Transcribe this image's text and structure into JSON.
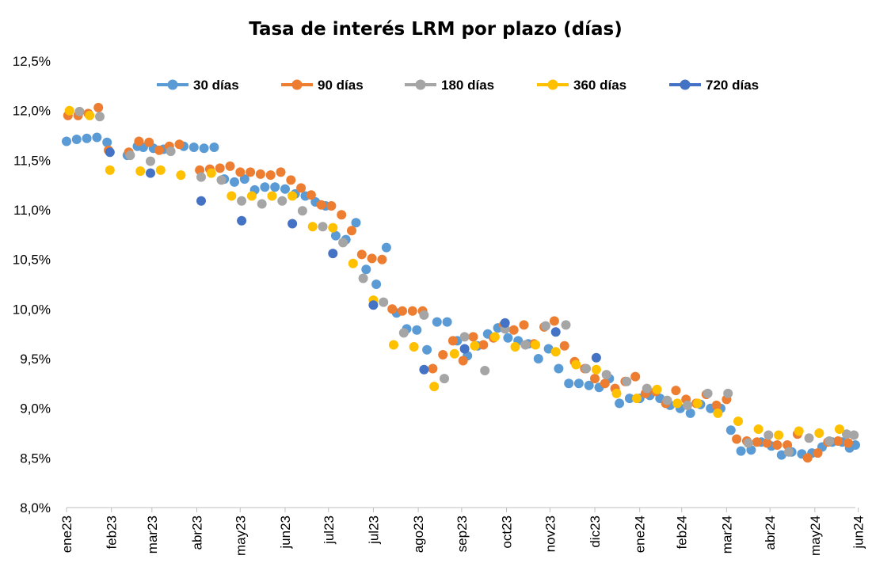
{
  "chart_data": {
    "type": "scatter",
    "title": "Tasa de interés LRM por plazo (días)",
    "xlabel": "",
    "ylabel": "",
    "ylim": [
      8.0,
      12.5
    ],
    "yticks": [
      "8,0%",
      "8,5%",
      "9,0%",
      "9,5%",
      "10,0%",
      "10,5%",
      "11,0%",
      "11,5%",
      "12,0%",
      "12,5%"
    ],
    "ytick_values": [
      8.0,
      8.5,
      9.0,
      9.5,
      10.0,
      10.5,
      11.0,
      11.5,
      12.0,
      12.5
    ],
    "x_start": "2023-01-02",
    "x_end": "2024-06-30",
    "xticks": [
      {
        "label": "ene23",
        "date": "2023-01-02"
      },
      {
        "label": "feb23",
        "date": "2023-02-02"
      },
      {
        "label": "mar23",
        "date": "2023-03-02"
      },
      {
        "label": "abr23",
        "date": "2023-04-02"
      },
      {
        "label": "may23",
        "date": "2023-05-02"
      },
      {
        "label": "jun23",
        "date": "2023-06-02"
      },
      {
        "label": "jul23",
        "date": "2023-07-02"
      },
      {
        "label": "jul23",
        "date": "2023-08-02"
      },
      {
        "label": "ago23",
        "date": "2023-09-02"
      },
      {
        "label": "sep23",
        "date": "2023-10-02"
      },
      {
        "label": "oct23",
        "date": "2023-11-02"
      },
      {
        "label": "nov23",
        "date": "2023-12-02"
      },
      {
        "label": "dic23",
        "date": "2024-01-02"
      },
      {
        "label": "ene24",
        "date": "2024-02-02"
      },
      {
        "label": "feb24",
        "date": "2024-03-02"
      },
      {
        "label": "mar24",
        "date": "2024-04-02"
      },
      {
        "label": "abr24",
        "date": "2024-05-02"
      },
      {
        "label": "may24",
        "date": "2024-06-02"
      },
      {
        "label": "jun24",
        "date": "2024-07-02"
      }
    ],
    "legend_position": "top",
    "grid": false,
    "series": [
      {
        "name": "30 días",
        "color": "#5b9bd5",
        "points": [
          [
            "2023-01-02",
            11.69
          ],
          [
            "2023-01-09",
            11.71
          ],
          [
            "2023-01-16",
            11.72
          ],
          [
            "2023-01-23",
            11.73
          ],
          [
            "2023-01-30",
            11.68
          ],
          [
            "2023-02-13",
            11.55
          ],
          [
            "2023-02-20",
            11.64
          ],
          [
            "2023-02-24",
            11.63
          ],
          [
            "2023-03-03",
            11.62
          ],
          [
            "2023-03-10",
            11.61
          ],
          [
            "2023-03-24",
            11.64
          ],
          [
            "2023-03-31",
            11.63
          ],
          [
            "2023-04-07",
            11.62
          ],
          [
            "2023-04-14",
            11.63
          ],
          [
            "2023-04-21",
            11.31
          ],
          [
            "2023-04-28",
            11.28
          ],
          [
            "2023-05-05",
            11.31
          ],
          [
            "2023-05-12",
            11.2
          ],
          [
            "2023-05-19",
            11.23
          ],
          [
            "2023-05-26",
            11.23
          ],
          [
            "2023-06-02",
            11.21
          ],
          [
            "2023-06-09",
            11.16
          ],
          [
            "2023-06-16",
            11.14
          ],
          [
            "2023-06-23",
            11.08
          ],
          [
            "2023-06-30",
            11.04
          ],
          [
            "2023-07-07",
            10.74
          ],
          [
            "2023-07-14",
            10.7
          ],
          [
            "2023-07-21",
            10.87
          ],
          [
            "2023-07-28",
            10.4
          ],
          [
            "2023-08-04",
            10.25
          ],
          [
            "2023-08-11",
            10.62
          ],
          [
            "2023-08-18",
            9.96
          ],
          [
            "2023-08-25",
            9.8
          ],
          [
            "2023-09-01",
            9.79
          ],
          [
            "2023-09-08",
            9.59
          ],
          [
            "2023-09-15",
            9.87
          ],
          [
            "2023-09-22",
            9.87
          ],
          [
            "2023-09-29",
            9.68
          ],
          [
            "2023-10-06",
            9.53
          ],
          [
            "2023-10-13",
            9.63
          ],
          [
            "2023-10-20",
            9.75
          ],
          [
            "2023-10-27",
            9.81
          ],
          [
            "2023-11-03",
            9.71
          ],
          [
            "2023-11-10",
            9.68
          ],
          [
            "2023-11-17",
            9.65
          ],
          [
            "2023-11-24",
            9.5
          ],
          [
            "2023-12-01",
            9.6
          ],
          [
            "2023-12-08",
            9.4
          ],
          [
            "2023-12-15",
            9.25
          ],
          [
            "2023-12-22",
            9.25
          ],
          [
            "2023-12-29",
            9.23
          ],
          [
            "2024-01-05",
            9.21
          ],
          [
            "2024-01-12",
            9.3
          ],
          [
            "2024-01-19",
            9.05
          ],
          [
            "2024-01-26",
            9.1
          ],
          [
            "2024-02-02",
            9.1
          ],
          [
            "2024-02-09",
            9.13
          ],
          [
            "2024-02-16",
            9.1
          ],
          [
            "2024-02-23",
            9.03
          ],
          [
            "2024-03-01",
            9.0
          ],
          [
            "2024-03-08",
            8.95
          ],
          [
            "2024-03-15",
            9.04
          ],
          [
            "2024-03-22",
            9.0
          ],
          [
            "2024-03-29",
            9.0
          ],
          [
            "2024-04-05",
            8.78
          ],
          [
            "2024-04-12",
            8.57
          ],
          [
            "2024-04-19",
            8.58
          ],
          [
            "2024-04-26",
            8.66
          ],
          [
            "2024-05-03",
            8.62
          ],
          [
            "2024-05-10",
            8.53
          ],
          [
            "2024-05-17",
            8.56
          ],
          [
            "2024-05-24",
            8.54
          ],
          [
            "2024-05-31",
            8.55
          ],
          [
            "2024-06-07",
            8.61
          ],
          [
            "2024-06-14",
            8.66
          ],
          [
            "2024-06-21",
            8.66
          ],
          [
            "2024-06-26",
            8.6
          ],
          [
            "2024-06-30",
            8.63
          ]
        ]
      },
      {
        "name": "90 días",
        "color": "#ed7d31",
        "points": [
          [
            "2023-01-03",
            11.95
          ],
          [
            "2023-01-10",
            11.95
          ],
          [
            "2023-01-17",
            11.97
          ],
          [
            "2023-01-24",
            12.03
          ],
          [
            "2023-01-31",
            11.6
          ],
          [
            "2023-02-14",
            11.58
          ],
          [
            "2023-02-21",
            11.69
          ],
          [
            "2023-02-28",
            11.68
          ],
          [
            "2023-03-07",
            11.6
          ],
          [
            "2023-03-14",
            11.64
          ],
          [
            "2023-03-21",
            11.66
          ],
          [
            "2023-04-04",
            11.4
          ],
          [
            "2023-04-11",
            11.41
          ],
          [
            "2023-04-18",
            11.42
          ],
          [
            "2023-04-25",
            11.44
          ],
          [
            "2023-05-02",
            11.38
          ],
          [
            "2023-05-09",
            11.38
          ],
          [
            "2023-05-16",
            11.36
          ],
          [
            "2023-05-23",
            11.35
          ],
          [
            "2023-05-30",
            11.38
          ],
          [
            "2023-06-06",
            11.3
          ],
          [
            "2023-06-13",
            11.22
          ],
          [
            "2023-06-20",
            11.15
          ],
          [
            "2023-06-27",
            11.05
          ],
          [
            "2023-07-04",
            11.04
          ],
          [
            "2023-07-11",
            10.95
          ],
          [
            "2023-07-18",
            10.79
          ],
          [
            "2023-07-25",
            10.55
          ],
          [
            "2023-08-01",
            10.51
          ],
          [
            "2023-08-08",
            10.5
          ],
          [
            "2023-08-15",
            10.0
          ],
          [
            "2023-08-22",
            9.98
          ],
          [
            "2023-08-29",
            9.98
          ],
          [
            "2023-09-05",
            9.98
          ],
          [
            "2023-09-12",
            9.4
          ],
          [
            "2023-09-19",
            9.54
          ],
          [
            "2023-09-26",
            9.68
          ],
          [
            "2023-10-03",
            9.48
          ],
          [
            "2023-10-10",
            9.72
          ],
          [
            "2023-10-17",
            9.64
          ],
          [
            "2023-10-24",
            9.71
          ],
          [
            "2023-10-31",
            9.84
          ],
          [
            "2023-11-07",
            9.79
          ],
          [
            "2023-11-14",
            9.84
          ],
          [
            "2023-11-21",
            9.65
          ],
          [
            "2023-11-28",
            9.82
          ],
          [
            "2023-12-05",
            9.88
          ],
          [
            "2023-12-12",
            9.63
          ],
          [
            "2023-12-19",
            9.47
          ],
          [
            "2023-12-26",
            9.4
          ],
          [
            "2024-01-02",
            9.3
          ],
          [
            "2024-01-09",
            9.25
          ],
          [
            "2024-01-16",
            9.2
          ],
          [
            "2024-01-23",
            9.27
          ],
          [
            "2024-01-30",
            9.32
          ],
          [
            "2024-02-06",
            9.15
          ],
          [
            "2024-02-13",
            9.17
          ],
          [
            "2024-02-20",
            9.05
          ],
          [
            "2024-02-27",
            9.18
          ],
          [
            "2024-03-05",
            9.09
          ],
          [
            "2024-03-12",
            9.05
          ],
          [
            "2024-03-19",
            9.14
          ],
          [
            "2024-03-26",
            9.03
          ],
          [
            "2024-04-02",
            9.09
          ],
          [
            "2024-04-09",
            8.69
          ],
          [
            "2024-04-16",
            8.67
          ],
          [
            "2024-04-23",
            8.66
          ],
          [
            "2024-04-30",
            8.65
          ],
          [
            "2024-05-07",
            8.63
          ],
          [
            "2024-05-14",
            8.63
          ],
          [
            "2024-05-21",
            8.74
          ],
          [
            "2024-05-28",
            8.5
          ],
          [
            "2024-06-04",
            8.55
          ],
          [
            "2024-06-11",
            8.66
          ],
          [
            "2024-06-18",
            8.67
          ],
          [
            "2024-06-25",
            8.65
          ]
        ]
      },
      {
        "name": "180 días",
        "color": "#a5a5a5",
        "points": [
          [
            "2023-01-11",
            11.99
          ],
          [
            "2023-01-25",
            11.94
          ],
          [
            "2023-02-15",
            11.55
          ],
          [
            "2023-03-01",
            11.49
          ],
          [
            "2023-03-15",
            11.59
          ],
          [
            "2023-04-05",
            11.33
          ],
          [
            "2023-04-19",
            11.3
          ],
          [
            "2023-05-03",
            11.09
          ],
          [
            "2023-05-17",
            11.06
          ],
          [
            "2023-05-31",
            11.09
          ],
          [
            "2023-06-14",
            10.99
          ],
          [
            "2023-06-28",
            10.83
          ],
          [
            "2023-07-12",
            10.67
          ],
          [
            "2023-07-26",
            10.31
          ],
          [
            "2023-08-09",
            10.07
          ],
          [
            "2023-08-23",
            9.76
          ],
          [
            "2023-09-06",
            9.94
          ],
          [
            "2023-09-20",
            9.3
          ],
          [
            "2023-10-04",
            9.72
          ],
          [
            "2023-10-18",
            9.38
          ],
          [
            "2023-11-01",
            9.8
          ],
          [
            "2023-11-15",
            9.64
          ],
          [
            "2023-11-29",
            9.83
          ],
          [
            "2023-12-13",
            9.84
          ],
          [
            "2023-12-27",
            9.4
          ],
          [
            "2024-01-10",
            9.34
          ],
          [
            "2024-01-24",
            9.27
          ],
          [
            "2024-02-07",
            9.2
          ],
          [
            "2024-02-21",
            9.08
          ],
          [
            "2024-03-06",
            9.03
          ],
          [
            "2024-03-20",
            9.15
          ],
          [
            "2024-04-03",
            9.15
          ],
          [
            "2024-04-17",
            8.65
          ],
          [
            "2024-05-01",
            8.73
          ],
          [
            "2024-05-15",
            8.56
          ],
          [
            "2024-05-29",
            8.7
          ],
          [
            "2024-06-12",
            8.67
          ],
          [
            "2024-06-24",
            8.74
          ],
          [
            "2024-06-29",
            8.73
          ]
        ]
      },
      {
        "name": "360 días",
        "color": "#ffc000",
        "points": [
          [
            "2023-01-04",
            12.0
          ],
          [
            "2023-01-18",
            11.95
          ],
          [
            "2023-02-01",
            11.4
          ],
          [
            "2023-02-22",
            11.39
          ],
          [
            "2023-03-08",
            11.4
          ],
          [
            "2023-03-22",
            11.35
          ],
          [
            "2023-04-12",
            11.37
          ],
          [
            "2023-04-26",
            11.14
          ],
          [
            "2023-05-10",
            11.14
          ],
          [
            "2023-05-24",
            11.14
          ],
          [
            "2023-06-07",
            11.14
          ],
          [
            "2023-06-21",
            10.83
          ],
          [
            "2023-07-05",
            10.82
          ],
          [
            "2023-07-19",
            10.46
          ],
          [
            "2023-08-02",
            10.09
          ],
          [
            "2023-08-16",
            9.64
          ],
          [
            "2023-08-30",
            9.62
          ],
          [
            "2023-09-13",
            9.22
          ],
          [
            "2023-09-27",
            9.55
          ],
          [
            "2023-10-11",
            9.63
          ],
          [
            "2023-10-25",
            9.72
          ],
          [
            "2023-11-08",
            9.62
          ],
          [
            "2023-11-22",
            9.64
          ],
          [
            "2023-12-06",
            9.57
          ],
          [
            "2023-12-20",
            9.44
          ],
          [
            "2024-01-03",
            9.39
          ],
          [
            "2024-01-17",
            9.15
          ],
          [
            "2024-01-31",
            9.1
          ],
          [
            "2024-02-14",
            9.19
          ],
          [
            "2024-02-28",
            9.05
          ],
          [
            "2024-03-13",
            9.05
          ],
          [
            "2024-03-27",
            8.95
          ],
          [
            "2024-04-10",
            8.87
          ],
          [
            "2024-04-24",
            8.79
          ],
          [
            "2024-05-08",
            8.73
          ],
          [
            "2024-05-22",
            8.77
          ],
          [
            "2024-06-05",
            8.75
          ],
          [
            "2024-06-19",
            8.79
          ]
        ]
      },
      {
        "name": "720 días",
        "color": "#4472c4",
        "points": [
          [
            "2023-02-01",
            11.58
          ],
          [
            "2023-03-01",
            11.37
          ],
          [
            "2023-04-05",
            11.09
          ],
          [
            "2023-05-03",
            10.89
          ],
          [
            "2023-06-07",
            10.86
          ],
          [
            "2023-07-05",
            10.56
          ],
          [
            "2023-08-02",
            10.04
          ],
          [
            "2023-09-06",
            9.39
          ],
          [
            "2023-10-04",
            9.6
          ],
          [
            "2023-11-01",
            9.86
          ],
          [
            "2023-12-06",
            9.77
          ],
          [
            "2024-01-03",
            9.51
          ]
        ]
      }
    ]
  }
}
